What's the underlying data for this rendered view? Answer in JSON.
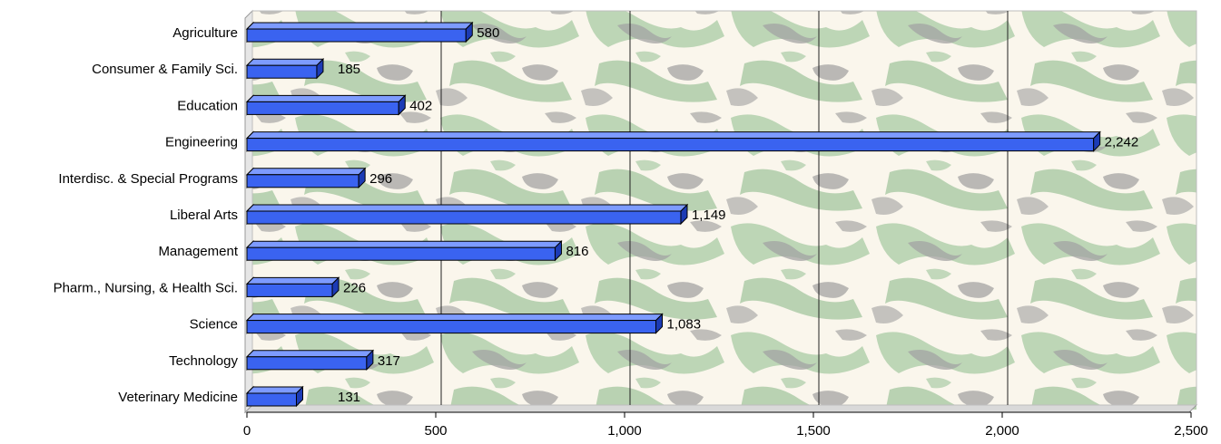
{
  "chart_data": {
    "type": "bar",
    "orientation": "horizontal",
    "three_d": true,
    "categories": [
      "Agriculture",
      "Consumer & Family Sci.",
      "Education",
      "Engineering",
      "Interdisc. & Special Programs",
      "Liberal Arts",
      "Management",
      "Pharm., Nursing, & Health Sci.",
      "Science",
      "Technology",
      "Veterinary Medicine"
    ],
    "values": [
      580,
      185,
      402,
      2242,
      296,
      1149,
      816,
      226,
      1083,
      317,
      131
    ],
    "value_labels": [
      "580",
      "185",
      "402",
      "2,242",
      "296",
      "1,149",
      "816",
      "226",
      "1,083",
      "317",
      "131"
    ],
    "xlim": [
      0,
      2500
    ],
    "x_ticks": [
      0,
      500,
      1000,
      1500,
      2000,
      2500
    ],
    "x_tick_labels": [
      "0",
      "500",
      "1,000",
      "1,500",
      "2,000",
      "2,500"
    ],
    "grid": "vertical",
    "legend": "none",
    "colors": {
      "bar": "#3a63f0",
      "bar_top": "#7d9bff",
      "bar_side": "#1c3bb5",
      "bar_back": "#7a1a1a",
      "plot_bg": "#faf6ec",
      "texture_green": "#a9c9a4",
      "texture_gray": "#9f9f9f",
      "grid": "#222222",
      "plot_border": "#bdbdbd"
    }
  }
}
